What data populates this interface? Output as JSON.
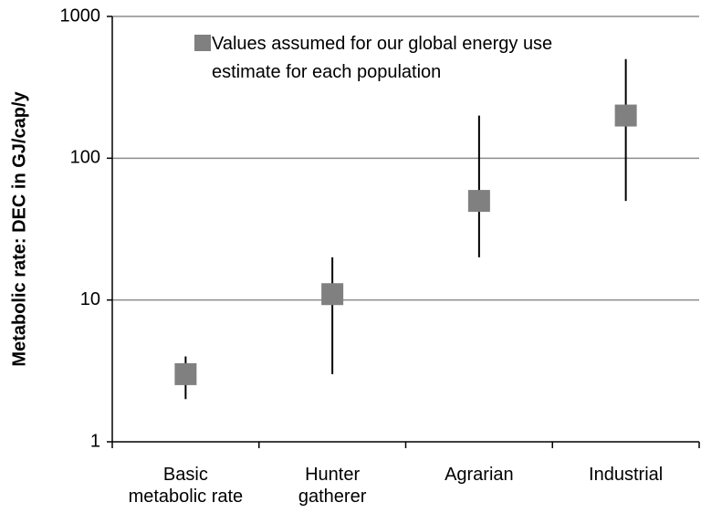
{
  "chart_data": {
    "type": "scatter",
    "y_label": "Metabolic rate: DEC in GJ/cap/y",
    "categories": [
      "Basic\nmetabolic rate",
      "Hunter\ngatherer",
      "Agrarian",
      "Industrial"
    ],
    "series": [
      {
        "name": "Values assumed for our global energy use estimate for each population",
        "color": "#808080",
        "values": [
          3,
          11,
          50,
          200
        ],
        "low": [
          2,
          3,
          20,
          50
        ],
        "high": [
          4,
          20,
          200,
          500
        ]
      }
    ],
    "ylim": [
      1,
      1000
    ],
    "yticks": [
      1,
      10,
      100,
      1000
    ],
    "log_y": true,
    "grid": true,
    "legend": "top"
  }
}
